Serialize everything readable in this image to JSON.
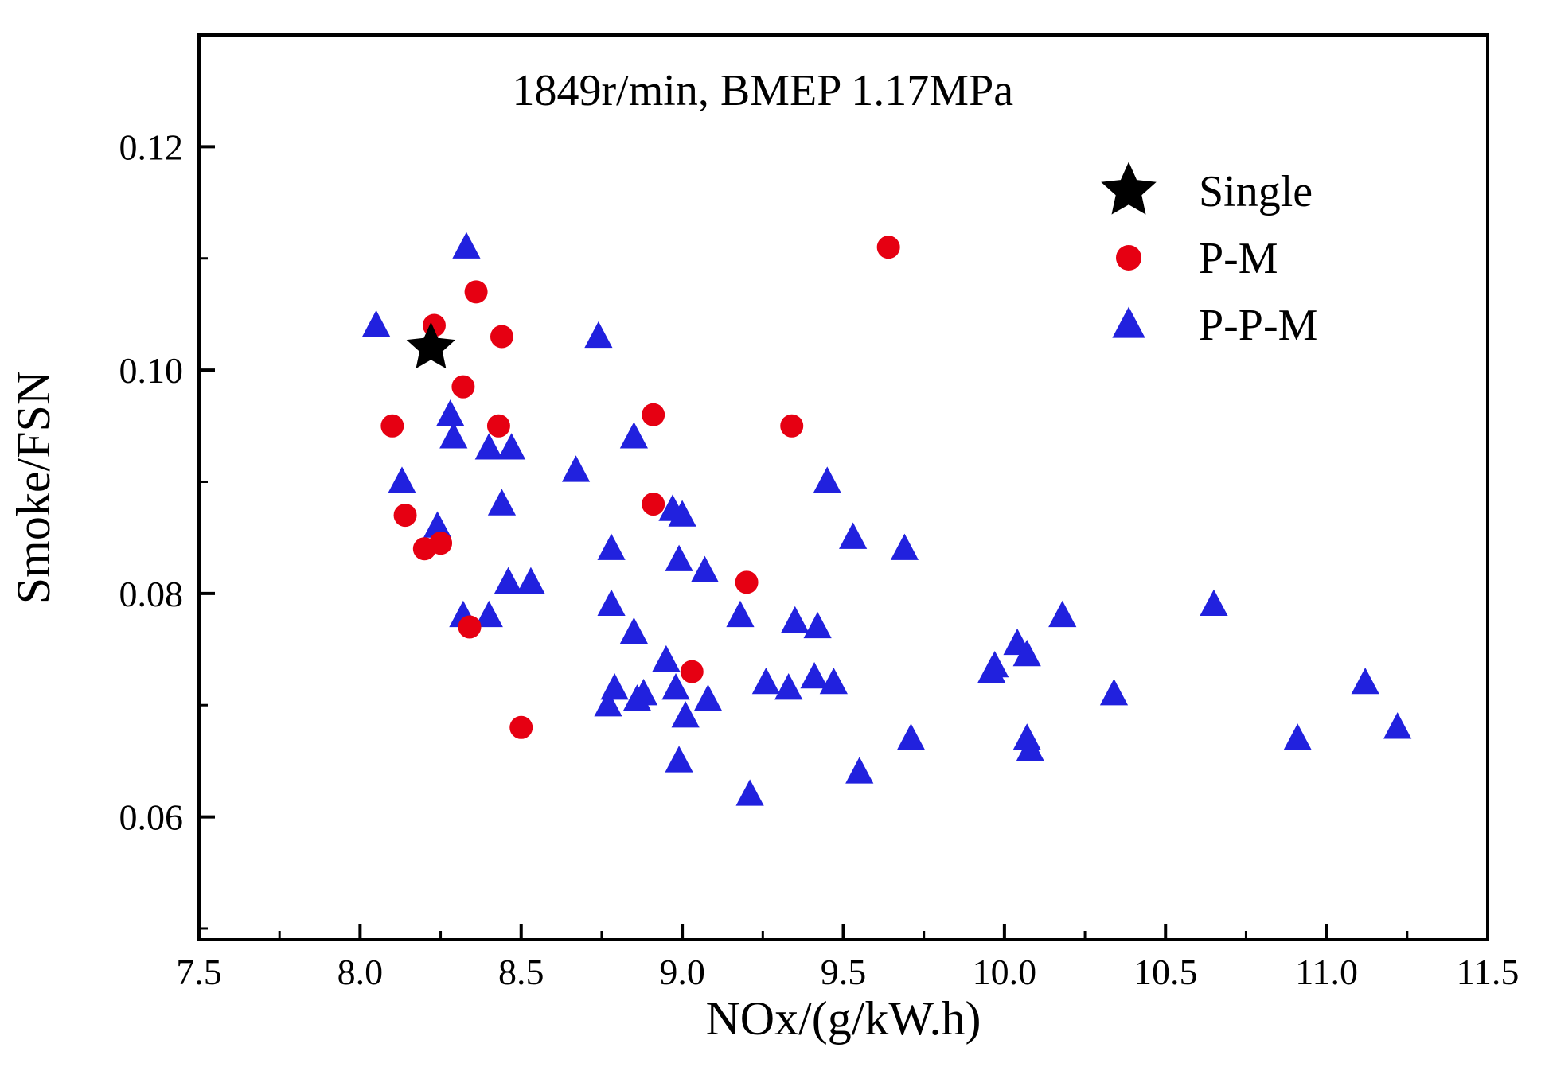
{
  "chart_data": {
    "type": "scatter",
    "title": "1849r/min, BMEP 1.17MPa",
    "xlabel": "NOx/(g/kW.h)",
    "ylabel": "Smoke/FSN",
    "xlim": [
      7.5,
      11.5
    ],
    "ylim": [
      0.049,
      0.13
    ],
    "x_ticks": [
      7.5,
      8.0,
      8.5,
      9.0,
      9.5,
      10.0,
      10.5,
      11.0,
      11.5
    ],
    "x_tick_labels": [
      "7.5",
      "8.0",
      "8.5",
      "9.0",
      "9.5",
      "10.0",
      "10.5",
      "11.0",
      "11.5"
    ],
    "y_ticks": [
      0.06,
      0.08,
      0.1,
      0.12
    ],
    "y_tick_labels": [
      "0.06",
      "0.08",
      "0.10",
      "0.12"
    ],
    "x_minor_step": 0.25,
    "y_minor_step": 0.01,
    "grid": false,
    "legend_position": "top-right",
    "series": [
      {
        "name": "Single",
        "marker": "star",
        "color": "#000000",
        "points": [
          [
            8.22,
            0.102
          ]
        ]
      },
      {
        "name": "P-M",
        "marker": "circle",
        "color": "#e60012",
        "points": [
          [
            8.1,
            0.095
          ],
          [
            8.14,
            0.087
          ],
          [
            8.2,
            0.084
          ],
          [
            8.23,
            0.104
          ],
          [
            8.25,
            0.0845
          ],
          [
            8.32,
            0.0985
          ],
          [
            8.34,
            0.077
          ],
          [
            8.36,
            0.107
          ],
          [
            8.43,
            0.095
          ],
          [
            8.44,
            0.103
          ],
          [
            8.5,
            0.068
          ],
          [
            8.91,
            0.096
          ],
          [
            8.91,
            0.088
          ],
          [
            9.03,
            0.073
          ],
          [
            9.2,
            0.081
          ],
          [
            9.34,
            0.095
          ],
          [
            9.64,
            0.111
          ]
        ]
      },
      {
        "name": "P-P-M",
        "marker": "triangle",
        "color": "#2121de",
        "points": [
          [
            8.05,
            0.104
          ],
          [
            8.33,
            0.111
          ],
          [
            8.74,
            0.103
          ],
          [
            8.28,
            0.096
          ],
          [
            8.29,
            0.094
          ],
          [
            8.85,
            0.094
          ],
          [
            8.4,
            0.093
          ],
          [
            8.47,
            0.093
          ],
          [
            8.67,
            0.091
          ],
          [
            8.13,
            0.09
          ],
          [
            9.45,
            0.09
          ],
          [
            8.24,
            0.086
          ],
          [
            8.44,
            0.088
          ],
          [
            8.97,
            0.0875
          ],
          [
            9.0,
            0.087
          ],
          [
            9.53,
            0.085
          ],
          [
            9.69,
            0.084
          ],
          [
            8.78,
            0.084
          ],
          [
            8.99,
            0.083
          ],
          [
            9.07,
            0.082
          ],
          [
            8.46,
            0.081
          ],
          [
            8.53,
            0.081
          ],
          [
            8.32,
            0.078
          ],
          [
            8.4,
            0.078
          ],
          [
            8.78,
            0.079
          ],
          [
            8.85,
            0.0765
          ],
          [
            9.18,
            0.078
          ],
          [
            9.35,
            0.0775
          ],
          [
            9.42,
            0.077
          ],
          [
            10.18,
            0.078
          ],
          [
            10.65,
            0.079
          ],
          [
            8.95,
            0.074
          ],
          [
            10.04,
            0.0755
          ],
          [
            9.97,
            0.0735
          ],
          [
            10.07,
            0.0745
          ],
          [
            9.96,
            0.073
          ],
          [
            9.26,
            0.072
          ],
          [
            9.33,
            0.0715
          ],
          [
            9.41,
            0.0725
          ],
          [
            9.47,
            0.072
          ],
          [
            8.79,
            0.0715
          ],
          [
            8.88,
            0.071
          ],
          [
            8.98,
            0.0715
          ],
          [
            9.08,
            0.0705
          ],
          [
            8.77,
            0.07
          ],
          [
            8.86,
            0.0705
          ],
          [
            10.34,
            0.071
          ],
          [
            11.12,
            0.072
          ],
          [
            9.01,
            0.069
          ],
          [
            9.71,
            0.067
          ],
          [
            10.07,
            0.067
          ],
          [
            10.91,
            0.067
          ],
          [
            11.22,
            0.068
          ],
          [
            10.08,
            0.066
          ],
          [
            8.99,
            0.065
          ],
          [
            9.55,
            0.064
          ],
          [
            9.21,
            0.062
          ]
        ]
      }
    ]
  }
}
